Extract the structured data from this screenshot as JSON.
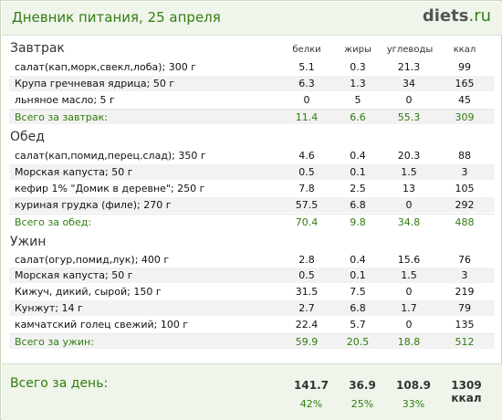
{
  "header": {
    "title": "Дневник питания, 25 апреля",
    "logo_main": "diets",
    "logo_suffix": ".ru"
  },
  "columns": {
    "protein": "белки",
    "fat": "жиры",
    "carbs": "углеводы",
    "kcal": "ккал"
  },
  "meals": [
    {
      "title": "Завтрак",
      "items": [
        {
          "name": "салат(кап,морк,свекл,лоба); 300 г",
          "protein": "5.1",
          "fat": "0.3",
          "carbs": "21.3",
          "kcal": "99"
        },
        {
          "name": "Крупа гречневая ядрица; 50 г",
          "protein": "6.3",
          "fat": "1.3",
          "carbs": "34",
          "kcal": "165"
        },
        {
          "name": "льняное масло; 5 г",
          "protein": "0",
          "fat": "5",
          "carbs": "0",
          "kcal": "45"
        }
      ],
      "total": {
        "label": "Всего за завтрак:",
        "protein": "11.4",
        "fat": "6.6",
        "carbs": "55.3",
        "kcal": "309"
      }
    },
    {
      "title": "Обед",
      "items": [
        {
          "name": "салат(кап,помид,перец.слад); 350 г",
          "protein": "4.6",
          "fat": "0.4",
          "carbs": "20.3",
          "kcal": "88"
        },
        {
          "name": "Морская капуста; 50 г",
          "protein": "0.5",
          "fat": "0.1",
          "carbs": "1.5",
          "kcal": "3"
        },
        {
          "name": "кефир 1% \"Домик в деревне\"; 250 г",
          "protein": "7.8",
          "fat": "2.5",
          "carbs": "13",
          "kcal": "105"
        },
        {
          "name": "куриная грудка (филе); 270 г",
          "protein": "57.5",
          "fat": "6.8",
          "carbs": "0",
          "kcal": "292"
        }
      ],
      "total": {
        "label": "Всего за обед:",
        "protein": "70.4",
        "fat": "9.8",
        "carbs": "34.8",
        "kcal": "488"
      }
    },
    {
      "title": "Ужин",
      "items": [
        {
          "name": "салат(огур,помид,лук); 400 г",
          "protein": "2.8",
          "fat": "0.4",
          "carbs": "15.6",
          "kcal": "76"
        },
        {
          "name": "Морская капуста; 50 г",
          "protein": "0.5",
          "fat": "0.1",
          "carbs": "1.5",
          "kcal": "3"
        },
        {
          "name": "Кижуч, дикий, сырой; 150 г",
          "protein": "31.5",
          "fat": "7.5",
          "carbs": "0",
          "kcal": "219"
        },
        {
          "name": "Кунжут; 14 г",
          "protein": "2.7",
          "fat": "6.8",
          "carbs": "1.7",
          "kcal": "79"
        },
        {
          "name": "камчатский голец свежий; 100 г",
          "protein": "22.4",
          "fat": "5.7",
          "carbs": "0",
          "kcal": "135"
        }
      ],
      "total": {
        "label": "Всего за ужин:",
        "protein": "59.9",
        "fat": "20.5",
        "carbs": "18.8",
        "kcal": "512"
      }
    }
  ],
  "day_total": {
    "label": "Всего за день:",
    "protein": "141.7",
    "fat": "36.9",
    "carbs": "108.9",
    "kcal": "1309 ккал",
    "protein_pct": "42%",
    "fat_pct": "25%",
    "carbs_pct": "33%"
  }
}
